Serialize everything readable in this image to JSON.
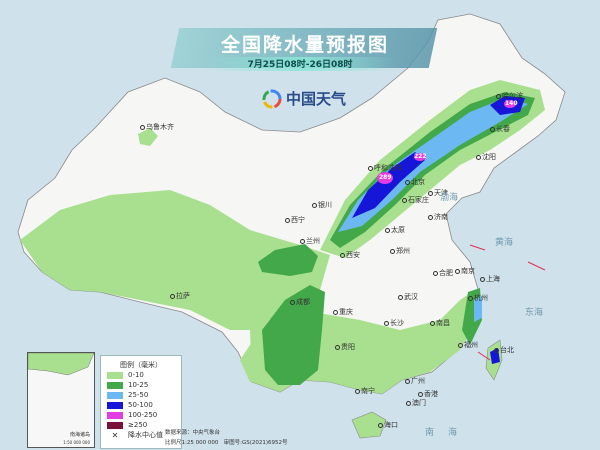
{
  "title": "全国降水量预报图",
  "subtitle": "7月25日08时-26日08时",
  "logo": {
    "text": "中国天气",
    "icon": "china-weather-swirl-logo"
  },
  "colors": {
    "sea": "#cfe1ea",
    "land": "#f6f6f4",
    "rain_0_10": "#a8e08f",
    "rain_10_25": "#42a84a",
    "rain_25_50": "#6cb8f2",
    "rain_50_100": "#1616d8",
    "rain_100_250": "#e23ce2",
    "rain_250_plus": "#7a0f3a"
  },
  "cities": [
    "乌鲁木齐",
    "西宁",
    "银川",
    "兰州",
    "西安",
    "拉萨",
    "成都",
    "重庆",
    "贵阳",
    "长沙",
    "武汉",
    "南昌",
    "合肥",
    "南京",
    "上海",
    "杭州",
    "福州",
    "台北",
    "广州",
    "南宁",
    "香港",
    "澳门",
    "海口",
    "郑州",
    "太原",
    "石家庄",
    "北京",
    "天津",
    "济南",
    "沈阳",
    "长春",
    "哈尔滨",
    "呼和浩特"
  ],
  "seas": [
    "南海",
    "渤海",
    "黄海",
    "东海"
  ],
  "rain_centers": [
    "140",
    "289",
    "222"
  ],
  "legend": {
    "title": "图例（毫米）",
    "items": [
      "0-10",
      "10-25",
      "25-50",
      "50-100",
      "100-250",
      "≥250"
    ],
    "center_marker": "降水中心值"
  },
  "inset": {
    "label": "南海诸岛",
    "scale": "1:50 000 000"
  },
  "credits": {
    "source": "数据来源：中央气象台",
    "scale": "比例尺1:25 000 000",
    "map_no": "审图号:GS(2021)6952号"
  }
}
